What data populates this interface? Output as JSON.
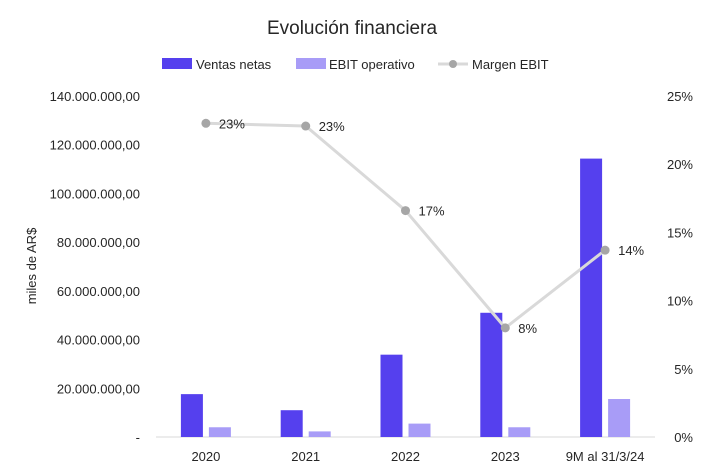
{
  "chart_data": {
    "type": "bar",
    "title": "Evolución financiera",
    "ylabel": "miles de AR$",
    "categories": [
      "2020",
      "2021",
      "2022",
      "2023",
      "9M al 31/3/24"
    ],
    "series": [
      {
        "name": "Ventas netas",
        "kind": "bar",
        "axis": "left",
        "color": "#5540ee",
        "values": [
          17600000,
          11000000,
          33800000,
          51000000,
          114300000
        ]
      },
      {
        "name": "EBIT operativo",
        "kind": "bar",
        "axis": "left",
        "color": "#a89cf7",
        "values": [
          4000000,
          2300000,
          5500000,
          4000000,
          15600000
        ]
      },
      {
        "name": "Margen EBIT",
        "kind": "line",
        "axis": "right",
        "color": "#d9d9d9",
        "marker_color": "#a6a6a6",
        "values": [
          0.23,
          0.228,
          0.166,
          0.08,
          0.137
        ],
        "labels": [
          "23%",
          "23%",
          "17%",
          "8%",
          "14%"
        ]
      }
    ],
    "y_left": {
      "min": 0,
      "max": 140000000,
      "tick_labels": [
        "-",
        "20.000.000,00",
        "40.000.000,00",
        "60.000.000,00",
        "80.000.000,00",
        "100.000.000,00",
        "120.000.000,00",
        "140.000.000,00"
      ]
    },
    "y_right": {
      "min": 0,
      "max": 0.25,
      "tick_labels": [
        "0%",
        "5%",
        "10%",
        "15%",
        "20%",
        "25%"
      ]
    },
    "grid": false,
    "legend_position": "top"
  }
}
